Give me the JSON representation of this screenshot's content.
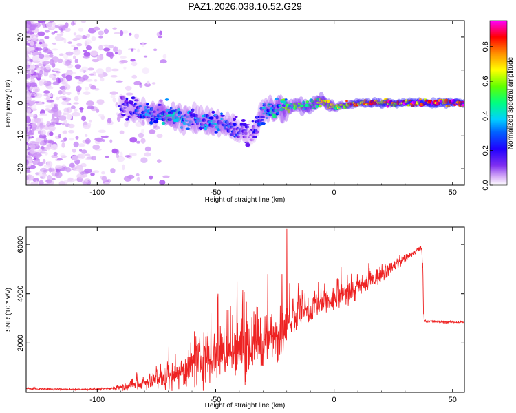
{
  "title": "PAZ1.2026.038.10.52.G29",
  "chart_data": [
    {
      "type": "heatmap",
      "name": "spectrogram",
      "xlabel": "Height of straight line (km)",
      "ylabel": "Frequency (Hz)",
      "xlim": [
        -130,
        55
      ],
      "ylim": [
        -25,
        25
      ],
      "xticks": [
        -100,
        -50,
        0,
        50
      ],
      "yticks": [
        -20,
        -10,
        0,
        10,
        20
      ],
      "colorbar": {
        "label": "Normalized spectral amplitude",
        "range": [
          0.0,
          0.95
        ],
        "ticks": [
          0.0,
          0.2,
          0.4,
          0.6,
          0.8
        ],
        "colormap": [
          "#ffffff",
          "#e8c8f8",
          "#a040f0",
          "#6010f0",
          "#0000ff",
          "#00c0ff",
          "#00ff80",
          "#80ff00",
          "#ffff00",
          "#ff8000",
          "#ff0000",
          "#ff00ff"
        ]
      },
      "ridge": {
        "x": [
          -90,
          -80,
          -70,
          -60,
          -50,
          -40,
          -35,
          -30,
          -25,
          -20,
          -15,
          -10,
          -5,
          0,
          5,
          10,
          20,
          30,
          40,
          55
        ],
        "freq": [
          -1,
          -2.5,
          -4,
          -5,
          -6,
          -8,
          -10,
          -3,
          -1.5,
          -1.5,
          -1,
          -0.5,
          0.5,
          -1.5,
          -0.5,
          0,
          0,
          0,
          0,
          0
        ],
        "amplitude": [
          0.3,
          0.4,
          0.5,
          0.4,
          0.45,
          0.35,
          0.25,
          0.45,
          0.5,
          0.6,
          0.65,
          0.7,
          0.75,
          0.7,
          0.8,
          0.85,
          0.9,
          0.95,
          0.95,
          0.95
        ]
      }
    },
    {
      "type": "line",
      "name": "snr",
      "xlabel": "Height of straight line (km)",
      "ylabel": "SNR (10 * v/v)",
      "xlim": [
        -130,
        55
      ],
      "ylim": [
        0,
        6700
      ],
      "xticks": [
        -100,
        -50,
        0,
        50
      ],
      "yticks": [
        2000,
        4000,
        6000
      ],
      "color": "#ee2222",
      "trend": {
        "x": [
          -130,
          -110,
          -95,
          -85,
          -75,
          -65,
          -55,
          -45,
          -35,
          -25,
          -20,
          -19,
          -10,
          0,
          10,
          20,
          30,
          37,
          38,
          45,
          55
        ],
        "y": [
          150,
          120,
          150,
          300,
          500,
          800,
          1300,
          1600,
          1900,
          2300,
          2500,
          3000,
          3300,
          3800,
          4200,
          4800,
          5400,
          5900,
          2900,
          2850,
          2850
        ],
        "noise": [
          40,
          30,
          40,
          200,
          350,
          600,
          900,
          1100,
          1100,
          900,
          800,
          700,
          500,
          500,
          400,
          300,
          150,
          100,
          60,
          50,
          50
        ]
      },
      "spikes": [
        {
          "x": -20,
          "y": 6650
        },
        {
          "x": -49,
          "y": 4000
        },
        {
          "x": -41,
          "y": 4500
        },
        {
          "x": -28,
          "y": 4800
        },
        {
          "x": -22,
          "y": 4800
        }
      ]
    }
  ]
}
